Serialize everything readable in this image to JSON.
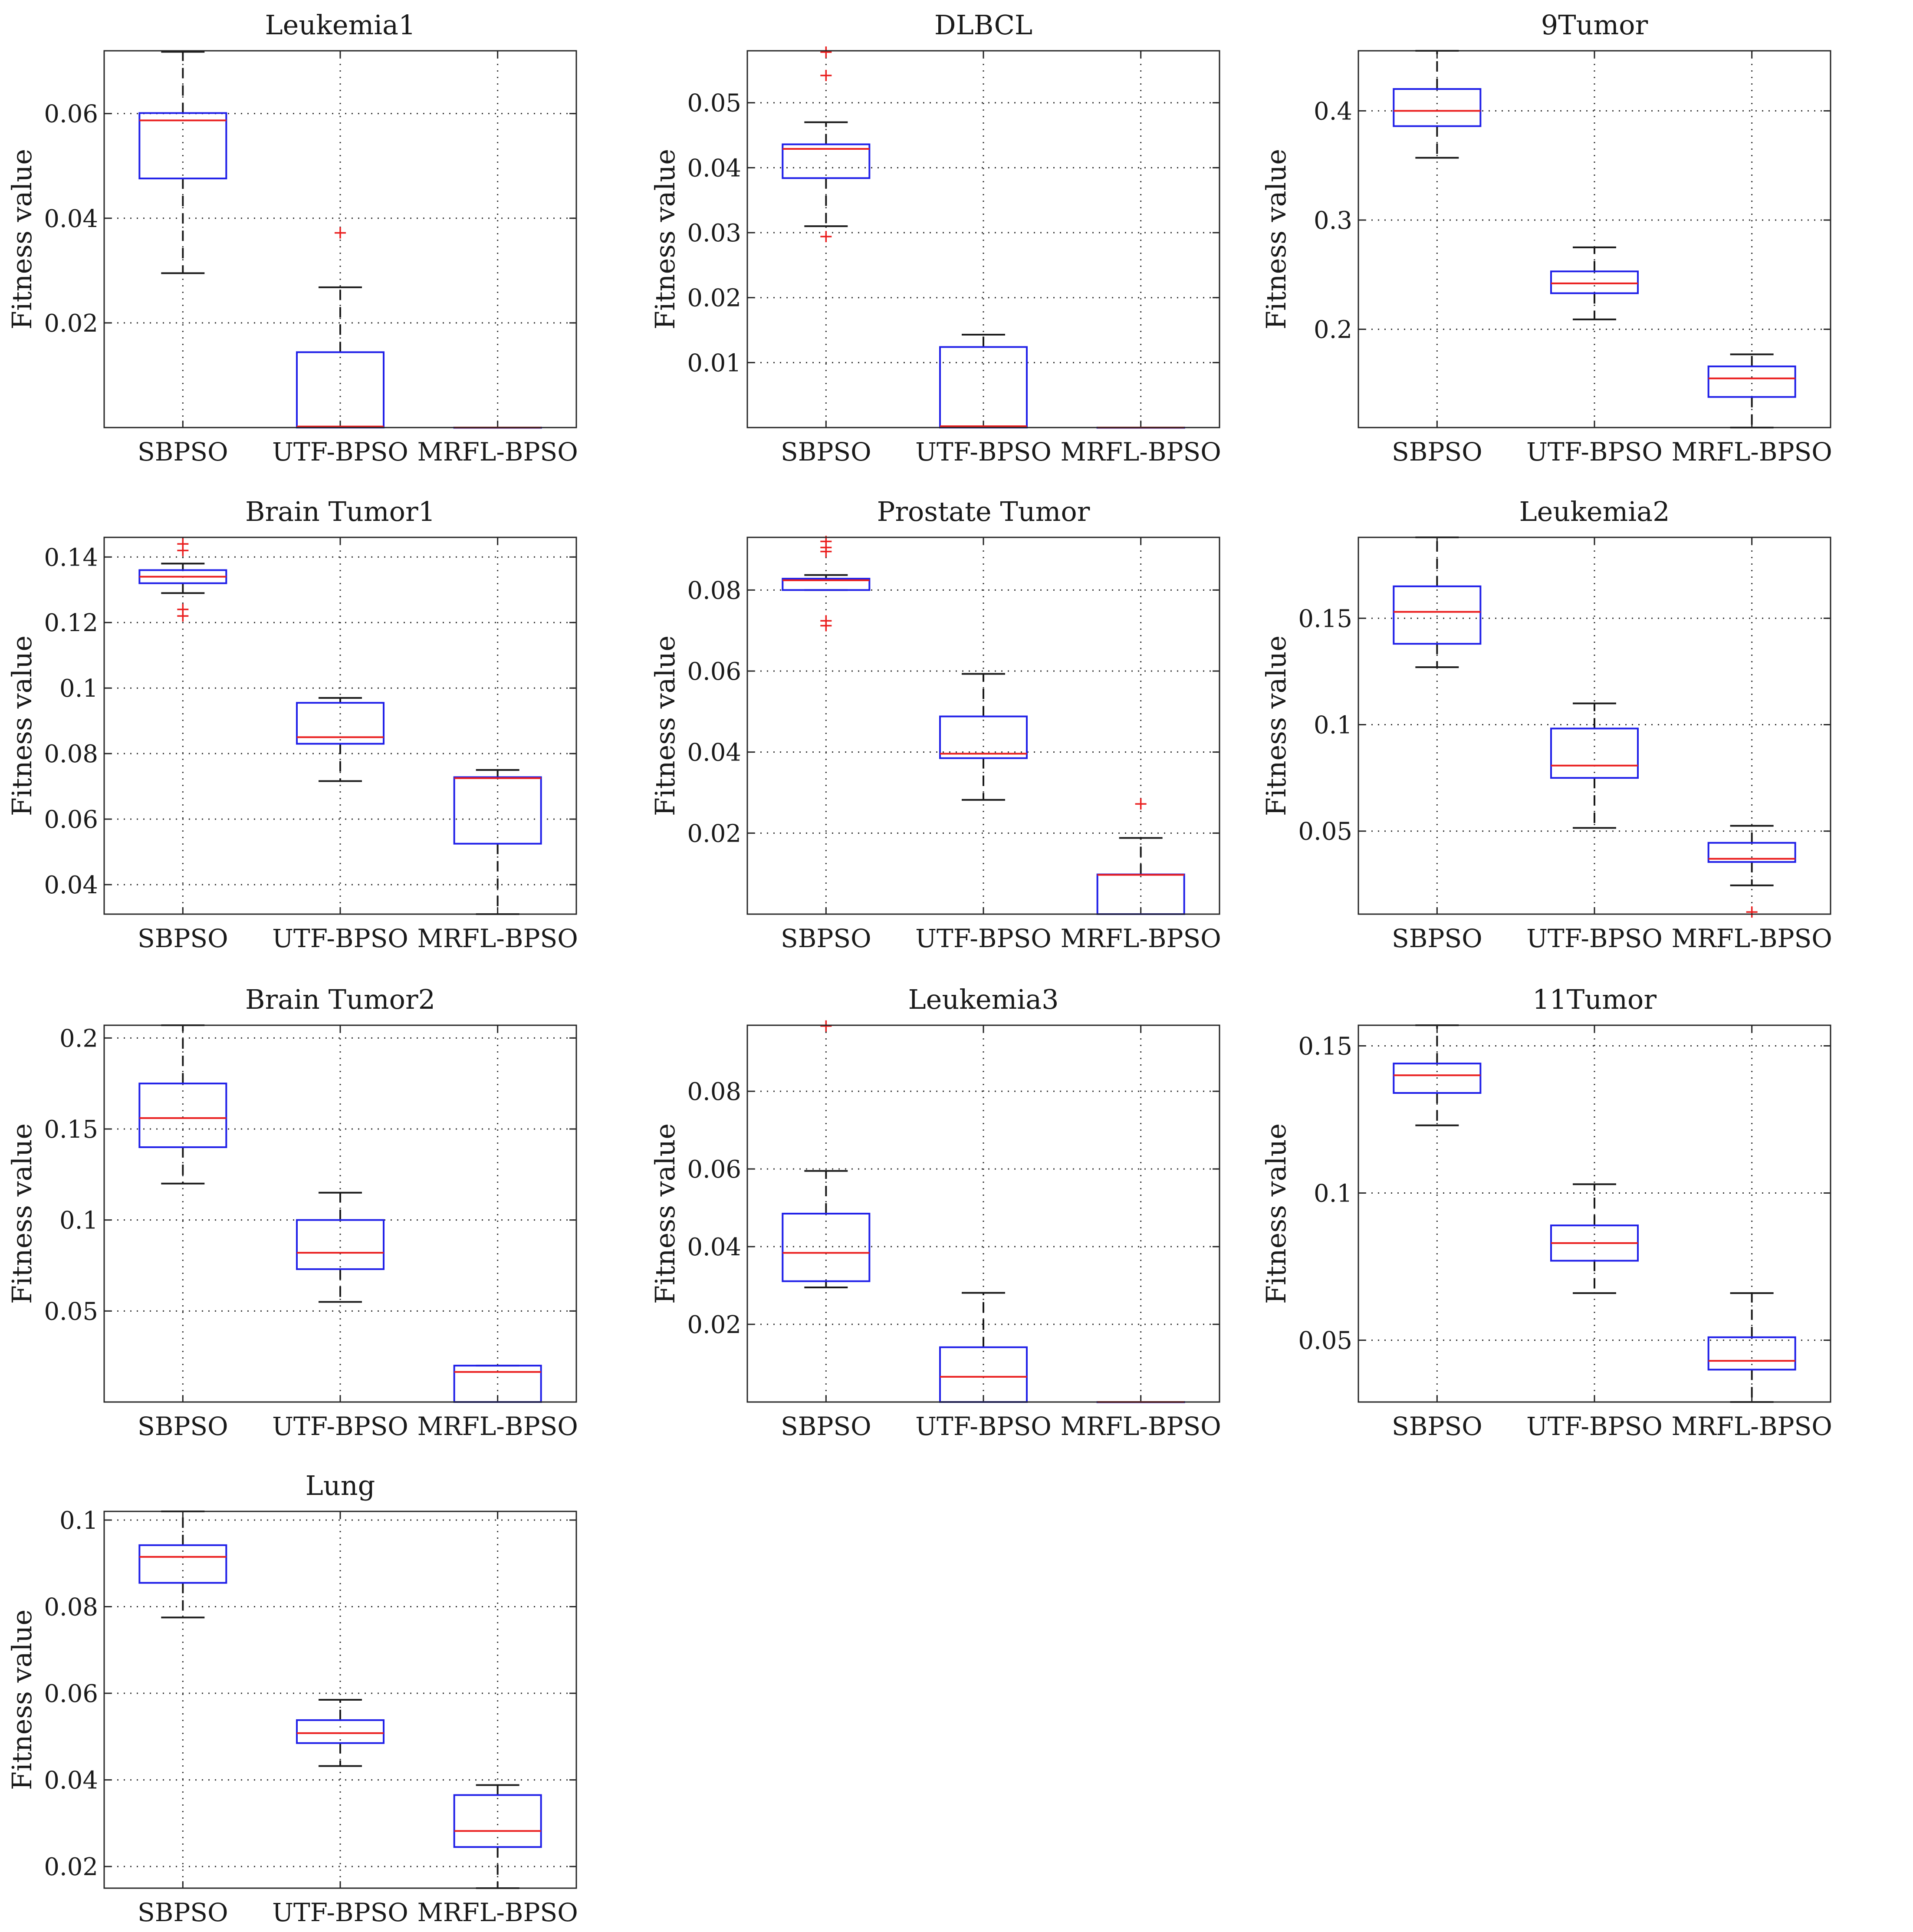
{
  "colors": {
    "box": "#1f1fe8",
    "median": "#ea1f1f",
    "whisker": "#1a1a1a",
    "outlier": "#ea1f1f",
    "grid": "#333333"
  },
  "chart_data": [
    {
      "type": "box",
      "title": "Leukemia1",
      "xlabel": "",
      "ylabel": "Fitness value",
      "categories": [
        "SBPSO",
        "UTF-BPSO",
        "MRFL-BPSO"
      ],
      "ylim": [
        0,
        0.072
      ],
      "yticks": [
        0.02,
        0.04,
        0.06
      ],
      "ytick_labels": [
        "0.02",
        "0.04",
        "0.06"
      ],
      "boxes": [
        {
          "whislo": 0.0295,
          "q1": 0.0476,
          "med": 0.0587,
          "q3": 0.0601,
          "whishi": 0.0718,
          "fliers": []
        },
        {
          "whislo": 0.0,
          "q1": 0.0,
          "med": 0.0002,
          "q3": 0.0144,
          "whishi": 0.0268,
          "fliers": [
            0.0372
          ]
        },
        {
          "whislo": 0.0,
          "q1": 0.0,
          "med": 0.0,
          "q3": 0.0,
          "whishi": 0.0,
          "fliers": []
        }
      ]
    },
    {
      "type": "box",
      "title": "DLBCL",
      "xlabel": "",
      "ylabel": "Fitness value",
      "categories": [
        "SBPSO",
        "UTF-BPSO",
        "MRFL-BPSO"
      ],
      "ylim": [
        0,
        0.058
      ],
      "yticks": [
        0.01,
        0.02,
        0.03,
        0.04,
        0.05
      ],
      "ytick_labels": [
        "0.01",
        "0.02",
        "0.03",
        "0.04",
        "0.05"
      ],
      "boxes": [
        {
          "whislo": 0.031,
          "q1": 0.0384,
          "med": 0.0429,
          "q3": 0.0436,
          "whishi": 0.047,
          "fliers": [
            0.0294,
            0.0542,
            0.0578
          ]
        },
        {
          "whislo": 0.0,
          "q1": 0.0,
          "med": 0.0002,
          "q3": 0.0124,
          "whishi": 0.0143,
          "fliers": []
        },
        {
          "whislo": 0.0,
          "q1": 0.0,
          "med": 0.0,
          "q3": 0.0,
          "whishi": 0.0,
          "fliers": []
        }
      ]
    },
    {
      "type": "box",
      "title": "9Tumor",
      "xlabel": "",
      "ylabel": "Fitness value",
      "categories": [
        "SBPSO",
        "UTF-BPSO",
        "MRFL-BPSO"
      ],
      "ylim": [
        0.11,
        0.455
      ],
      "yticks": [
        0.2,
        0.3,
        0.4
      ],
      "ytick_labels": [
        "0.2",
        "0.3",
        "0.4"
      ],
      "boxes": [
        {
          "whislo": 0.357,
          "q1": 0.386,
          "med": 0.4,
          "q3": 0.42,
          "whishi": 0.455,
          "fliers": []
        },
        {
          "whislo": 0.209,
          "q1": 0.233,
          "med": 0.242,
          "q3": 0.253,
          "whishi": 0.275,
          "fliers": []
        },
        {
          "whislo": 0.11,
          "q1": 0.138,
          "med": 0.155,
          "q3": 0.166,
          "whishi": 0.177,
          "fliers": []
        }
      ]
    },
    {
      "type": "box",
      "title": "Brain Tumor1",
      "xlabel": "",
      "ylabel": "Fitness value",
      "categories": [
        "SBPSO",
        "UTF-BPSO",
        "MRFL-BPSO"
      ],
      "ylim": [
        0.031,
        0.146
      ],
      "yticks": [
        0.04,
        0.06,
        0.08,
        0.1,
        0.12,
        0.14
      ],
      "ytick_labels": [
        "0.04",
        "0.06",
        "0.08",
        "0.1",
        "0.12",
        "0.14"
      ],
      "boxes": [
        {
          "whislo": 0.129,
          "q1": 0.132,
          "med": 0.134,
          "q3": 0.136,
          "whishi": 0.138,
          "fliers": [
            0.122,
            0.124,
            0.142,
            0.144
          ]
        },
        {
          "whislo": 0.0716,
          "q1": 0.083,
          "med": 0.085,
          "q3": 0.0955,
          "whishi": 0.097,
          "fliers": []
        },
        {
          "whislo": 0.031,
          "q1": 0.0525,
          "med": 0.0725,
          "q3": 0.0728,
          "whishi": 0.075,
          "fliers": []
        }
      ]
    },
    {
      "type": "box",
      "title": "Prostate Tumor",
      "xlabel": "",
      "ylabel": "Fitness value",
      "categories": [
        "SBPSO",
        "UTF-BPSO",
        "MRFL-BPSO"
      ],
      "ylim": [
        0,
        0.093
      ],
      "yticks": [
        0.02,
        0.04,
        0.06,
        0.08
      ],
      "ytick_labels": [
        "0.02",
        "0.04",
        "0.06",
        "0.08"
      ],
      "boxes": [
        {
          "whislo": 0.08,
          "q1": 0.08,
          "med": 0.0824,
          "q3": 0.0828,
          "whishi": 0.0837,
          "fliers": [
            0.0712,
            0.0724,
            0.0895,
            0.0905,
            0.092
          ]
        },
        {
          "whislo": 0.0282,
          "q1": 0.0385,
          "med": 0.0396,
          "q3": 0.0488,
          "whishi": 0.0593,
          "fliers": []
        },
        {
          "whislo": 0.0,
          "q1": 0.0,
          "med": 0.0097,
          "q3": 0.0098,
          "whishi": 0.0188,
          "fliers": [
            0.0272
          ]
        }
      ]
    },
    {
      "type": "box",
      "title": "Leukemia2",
      "xlabel": "",
      "ylabel": "Fitness value",
      "categories": [
        "SBPSO",
        "UTF-BPSO",
        "MRFL-BPSO"
      ],
      "ylim": [
        0.011,
        0.188
      ],
      "yticks": [
        0.05,
        0.1,
        0.15
      ],
      "ytick_labels": [
        "0.05",
        "0.1",
        "0.15"
      ],
      "boxes": [
        {
          "whislo": 0.127,
          "q1": 0.138,
          "med": 0.153,
          "q3": 0.165,
          "whishi": 0.188,
          "fliers": []
        },
        {
          "whislo": 0.0515,
          "q1": 0.075,
          "med": 0.0808,
          "q3": 0.0982,
          "whishi": 0.11,
          "fliers": []
        },
        {
          "whislo": 0.0245,
          "q1": 0.0355,
          "med": 0.037,
          "q3": 0.0445,
          "whishi": 0.0525,
          "fliers": [
            0.012
          ]
        }
      ]
    },
    {
      "type": "box",
      "title": "Brain Tumor2",
      "xlabel": "",
      "ylabel": "Fitness value",
      "categories": [
        "SBPSO",
        "UTF-BPSO",
        "MRFL-BPSO"
      ],
      "ylim": [
        0,
        0.207
      ],
      "yticks": [
        0.05,
        0.1,
        0.15,
        0.2
      ],
      "ytick_labels": [
        "0.05",
        "0.1",
        "0.15",
        "0.2"
      ],
      "boxes": [
        {
          "whislo": 0.12,
          "q1": 0.14,
          "med": 0.156,
          "q3": 0.175,
          "whishi": 0.207,
          "fliers": []
        },
        {
          "whislo": 0.055,
          "q1": 0.073,
          "med": 0.082,
          "q3": 0.1,
          "whishi": 0.115,
          "fliers": []
        },
        {
          "whislo": 0.0,
          "q1": 0.0,
          "med": 0.0165,
          "q3": 0.02,
          "whishi": 0.02,
          "fliers": []
        }
      ]
    },
    {
      "type": "box",
      "title": "Leukemia3",
      "xlabel": "",
      "ylabel": "Fitness value",
      "categories": [
        "SBPSO",
        "UTF-BPSO",
        "MRFL-BPSO"
      ],
      "ylim": [
        0,
        0.097
      ],
      "yticks": [
        0.02,
        0.04,
        0.06,
        0.08
      ],
      "ytick_labels": [
        "0.02",
        "0.04",
        "0.06",
        "0.08"
      ],
      "boxes": [
        {
          "whislo": 0.0295,
          "q1": 0.0311,
          "med": 0.0384,
          "q3": 0.0485,
          "whishi": 0.0595,
          "fliers": [
            0.0968
          ]
        },
        {
          "whislo": 0.0,
          "q1": 0.0,
          "med": 0.0065,
          "q3": 0.0141,
          "whishi": 0.0281,
          "fliers": []
        },
        {
          "whislo": 0.0,
          "q1": 0.0,
          "med": 0.0,
          "q3": 0.0,
          "whishi": 0.0,
          "fliers": []
        }
      ]
    },
    {
      "type": "box",
      "title": "11Tumor",
      "xlabel": "",
      "ylabel": "Fitness value",
      "categories": [
        "SBPSO",
        "UTF-BPSO",
        "MRFL-BPSO"
      ],
      "ylim": [
        0.029,
        0.157
      ],
      "yticks": [
        0.05,
        0.1,
        0.15
      ],
      "ytick_labels": [
        "0.05",
        "0.1",
        "0.15"
      ],
      "boxes": [
        {
          "whislo": 0.123,
          "q1": 0.134,
          "med": 0.14,
          "q3": 0.144,
          "whishi": 0.157,
          "fliers": []
        },
        {
          "whislo": 0.066,
          "q1": 0.077,
          "med": 0.083,
          "q3": 0.089,
          "whishi": 0.103,
          "fliers": []
        },
        {
          "whislo": 0.029,
          "q1": 0.04,
          "med": 0.043,
          "q3": 0.051,
          "whishi": 0.066,
          "fliers": []
        }
      ]
    },
    {
      "type": "box",
      "title": "Lung",
      "xlabel": "",
      "ylabel": "Fitness value",
      "categories": [
        "SBPSO",
        "UTF-BPSO",
        "MRFL-BPSO"
      ],
      "ylim": [
        0.015,
        0.102
      ],
      "yticks": [
        0.02,
        0.04,
        0.06,
        0.08,
        0.1
      ],
      "ytick_labels": [
        "0.02",
        "0.04",
        "0.06",
        "0.08",
        "0.1"
      ],
      "boxes": [
        {
          "whislo": 0.0775,
          "q1": 0.0855,
          "med": 0.0915,
          "q3": 0.0942,
          "whishi": 0.102,
          "fliers": []
        },
        {
          "whislo": 0.0432,
          "q1": 0.0485,
          "med": 0.0508,
          "q3": 0.0538,
          "whishi": 0.0585,
          "fliers": []
        },
        {
          "whislo": 0.015,
          "q1": 0.0245,
          "med": 0.0282,
          "q3": 0.0365,
          "whishi": 0.0388,
          "fliers": []
        }
      ]
    }
  ]
}
